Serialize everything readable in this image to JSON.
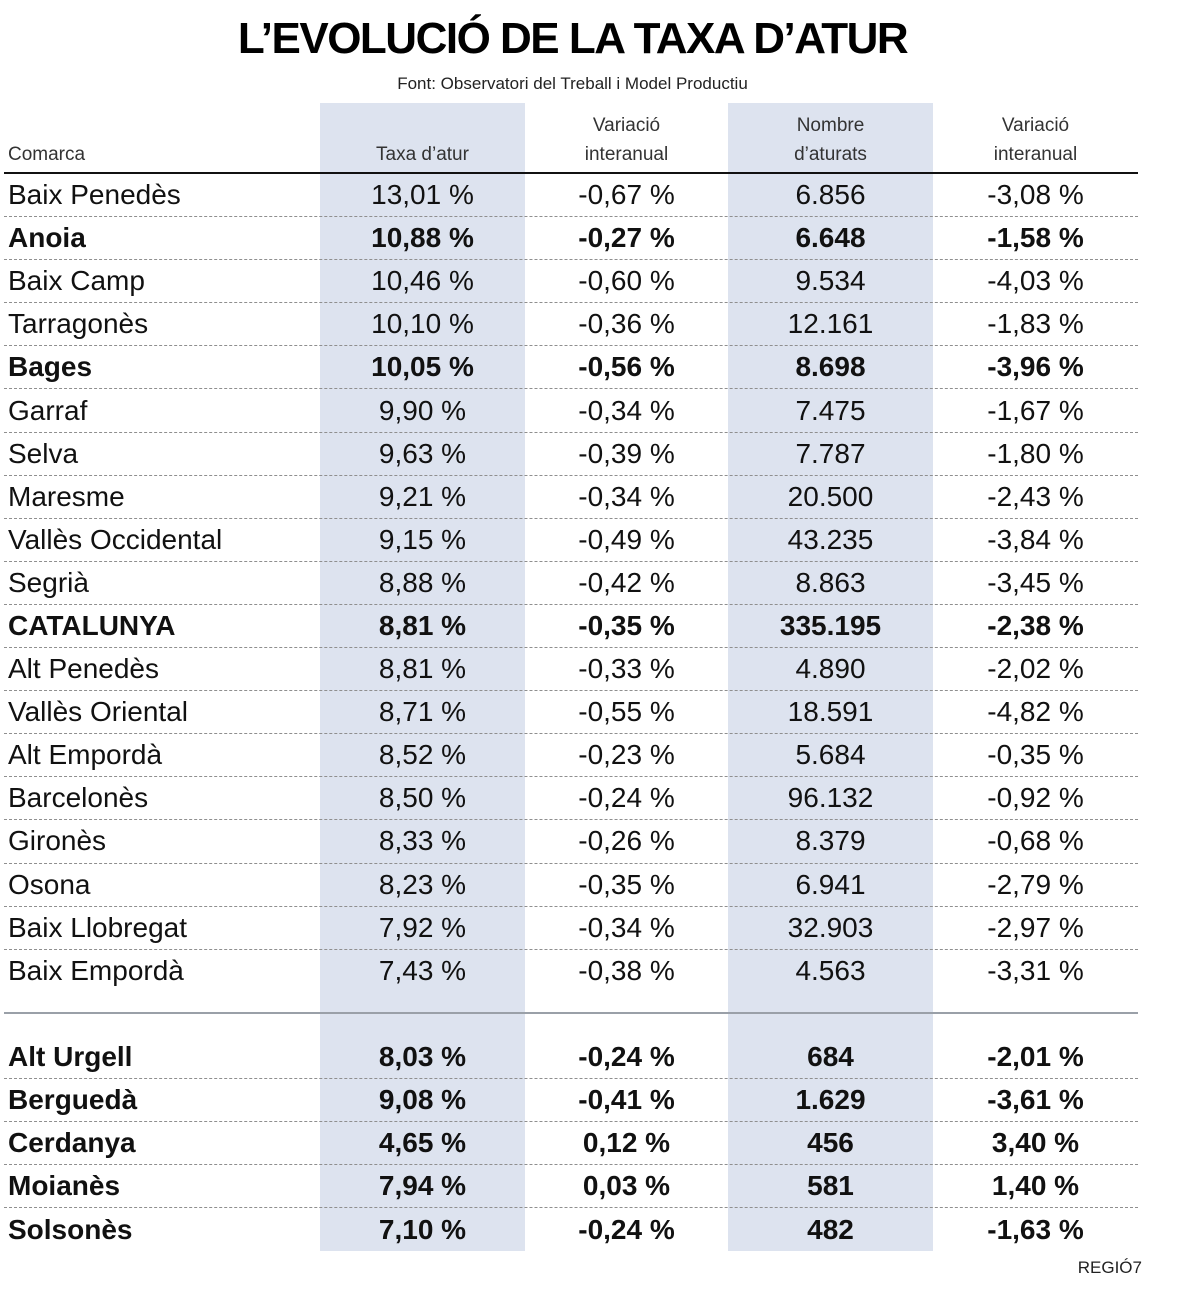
{
  "title": "L’EVOLUCIÓ DE LA TAXA D’ATUR",
  "source": "Font: Observatori del Treball i Model Productiu",
  "credit": "REGIÓ7",
  "colors": {
    "column_shade": "#dde3ef",
    "text": "#111111"
  },
  "chart_data": {
    "type": "table",
    "title": "L’EVOLUCIÓ DE LA TAXA D’ATUR",
    "columns": [
      {
        "lines": [
          "Comarca"
        ]
      },
      {
        "lines": [
          "Taxa d’atur"
        ]
      },
      {
        "lines": [
          "Variació",
          "interanual"
        ]
      },
      {
        "lines": [
          "Nombre",
          "d’aturats"
        ]
      },
      {
        "lines": [
          "Variació",
          "interanual"
        ]
      }
    ],
    "rows": [
      {
        "comarca": "Baix Penedès",
        "taxa": "13,01 %",
        "var_taxa": "-0,67 %",
        "aturats": "6.856",
        "var_aturats": "-3,08 %",
        "bold": false
      },
      {
        "comarca": "Anoia",
        "taxa": "10,88 %",
        "var_taxa": "-0,27 %",
        "aturats": "6.648",
        "var_aturats": "-1,58 %",
        "bold": true
      },
      {
        "comarca": "Baix Camp",
        "taxa": "10,46 %",
        "var_taxa": "-0,60 %",
        "aturats": "9.534",
        "var_aturats": "-4,03 %",
        "bold": false
      },
      {
        "comarca": "Tarragonès",
        "taxa": "10,10 %",
        "var_taxa": "-0,36 %",
        "aturats": "12.161",
        "var_aturats": "-1,83 %",
        "bold": false
      },
      {
        "comarca": "Bages",
        "taxa": "10,05 %",
        "var_taxa": "-0,56 %",
        "aturats": "8.698",
        "var_aturats": "-3,96 %",
        "bold": true
      },
      {
        "comarca": "Garraf",
        "taxa": "9,90 %",
        "var_taxa": "-0,34 %",
        "aturats": "7.475",
        "var_aturats": "-1,67 %",
        "bold": false
      },
      {
        "comarca": "Selva",
        "taxa": "9,63 %",
        "var_taxa": "-0,39 %",
        "aturats": "7.787",
        "var_aturats": "-1,80 %",
        "bold": false
      },
      {
        "comarca": "Maresme",
        "taxa": "9,21 %",
        "var_taxa": "-0,34 %",
        "aturats": "20.500",
        "var_aturats": "-2,43 %",
        "bold": false
      },
      {
        "comarca": "Vallès Occidental",
        "taxa": "9,15 %",
        "var_taxa": "-0,49 %",
        "aturats": "43.235",
        "var_aturats": "-3,84 %",
        "bold": false
      },
      {
        "comarca": "Segrià",
        "taxa": "8,88 %",
        "var_taxa": "-0,42 %",
        "aturats": "8.863",
        "var_aturats": "-3,45 %",
        "bold": false
      },
      {
        "comarca": "CATALUNYA",
        "taxa": "8,81 %",
        "var_taxa": "-0,35 %",
        "aturats": "335.195",
        "var_aturats": "-2,38 %",
        "bold": true
      },
      {
        "comarca": "Alt Penedès",
        "taxa": "8,81 %",
        "var_taxa": "-0,33 %",
        "aturats": "4.890",
        "var_aturats": "-2,02 %",
        "bold": false
      },
      {
        "comarca": "Vallès Oriental",
        "taxa": "8,71 %",
        "var_taxa": "-0,55 %",
        "aturats": "18.591",
        "var_aturats": "-4,82 %",
        "bold": false
      },
      {
        "comarca": "Alt Empordà",
        "taxa": "8,52 %",
        "var_taxa": "-0,23 %",
        "aturats": "5.684",
        "var_aturats": "-0,35 %",
        "bold": false
      },
      {
        "comarca": "Barcelonès",
        "taxa": "8,50 %",
        "var_taxa": "-0,24 %",
        "aturats": "96.132",
        "var_aturats": "-0,92 %",
        "bold": false
      },
      {
        "comarca": "Gironès",
        "taxa": "8,33 %",
        "var_taxa": "-0,26 %",
        "aturats": "8.379",
        "var_aturats": "-0,68 %",
        "bold": false
      },
      {
        "comarca": "Osona",
        "taxa": "8,23 %",
        "var_taxa": "-0,35 %",
        "aturats": "6.941",
        "var_aturats": "-2,79 %",
        "bold": false
      },
      {
        "comarca": "Baix Llobregat",
        "taxa": "7,92 %",
        "var_taxa": "-0,34 %",
        "aturats": "32.903",
        "var_aturats": "-2,97 %",
        "bold": false
      },
      {
        "comarca": "Baix Empordà",
        "taxa": "7,43 %",
        "var_taxa": "-0,38 %",
        "aturats": "4.563",
        "var_aturats": "-3,31 %",
        "bold": false
      }
    ],
    "secondary_rows": [
      {
        "comarca": "Alt Urgell",
        "taxa": "8,03 %",
        "var_taxa": "-0,24 %",
        "aturats": "684",
        "var_aturats": "-2,01 %",
        "bold": true
      },
      {
        "comarca": "Berguedà",
        "taxa": "9,08 %",
        "var_taxa": "-0,41 %",
        "aturats": "1.629",
        "var_aturats": "-3,61 %",
        "bold": true
      },
      {
        "comarca": "Cerdanya",
        "taxa": "4,65 %",
        "var_taxa": "0,12 %",
        "aturats": "456",
        "var_aturats": "3,40 %",
        "bold": true
      },
      {
        "comarca": "Moianès",
        "taxa": "7,94 %",
        "var_taxa": "0,03 %",
        "aturats": "581",
        "var_aturats": "1,40 %",
        "bold": true
      },
      {
        "comarca": "Solsonès",
        "taxa": "7,10 %",
        "var_taxa": "-0,24 %",
        "aturats": "482",
        "var_aturats": "-1,63 %",
        "bold": true
      }
    ]
  }
}
